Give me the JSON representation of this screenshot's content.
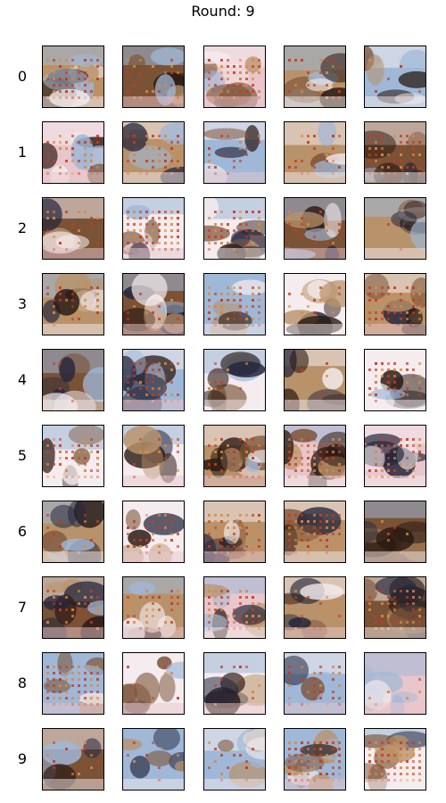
{
  "title": "Round: 9",
  "rows": [
    {
      "label": "0"
    },
    {
      "label": "1"
    },
    {
      "label": "2"
    },
    {
      "label": "3"
    },
    {
      "label": "4"
    },
    {
      "label": "5"
    },
    {
      "label": "6"
    },
    {
      "label": "7"
    },
    {
      "label": "8"
    },
    {
      "label": "9"
    }
  ],
  "columns": 5,
  "palette": {
    "sky": "#9fb8d8",
    "white": "#f4ecee",
    "pink": "#e8c6cc",
    "brown": "#7a5236",
    "dark": "#2a1a14",
    "navy": "#24263c",
    "red": "#c93a20",
    "orange": "#d98a3c",
    "tan": "#b8926a"
  }
}
